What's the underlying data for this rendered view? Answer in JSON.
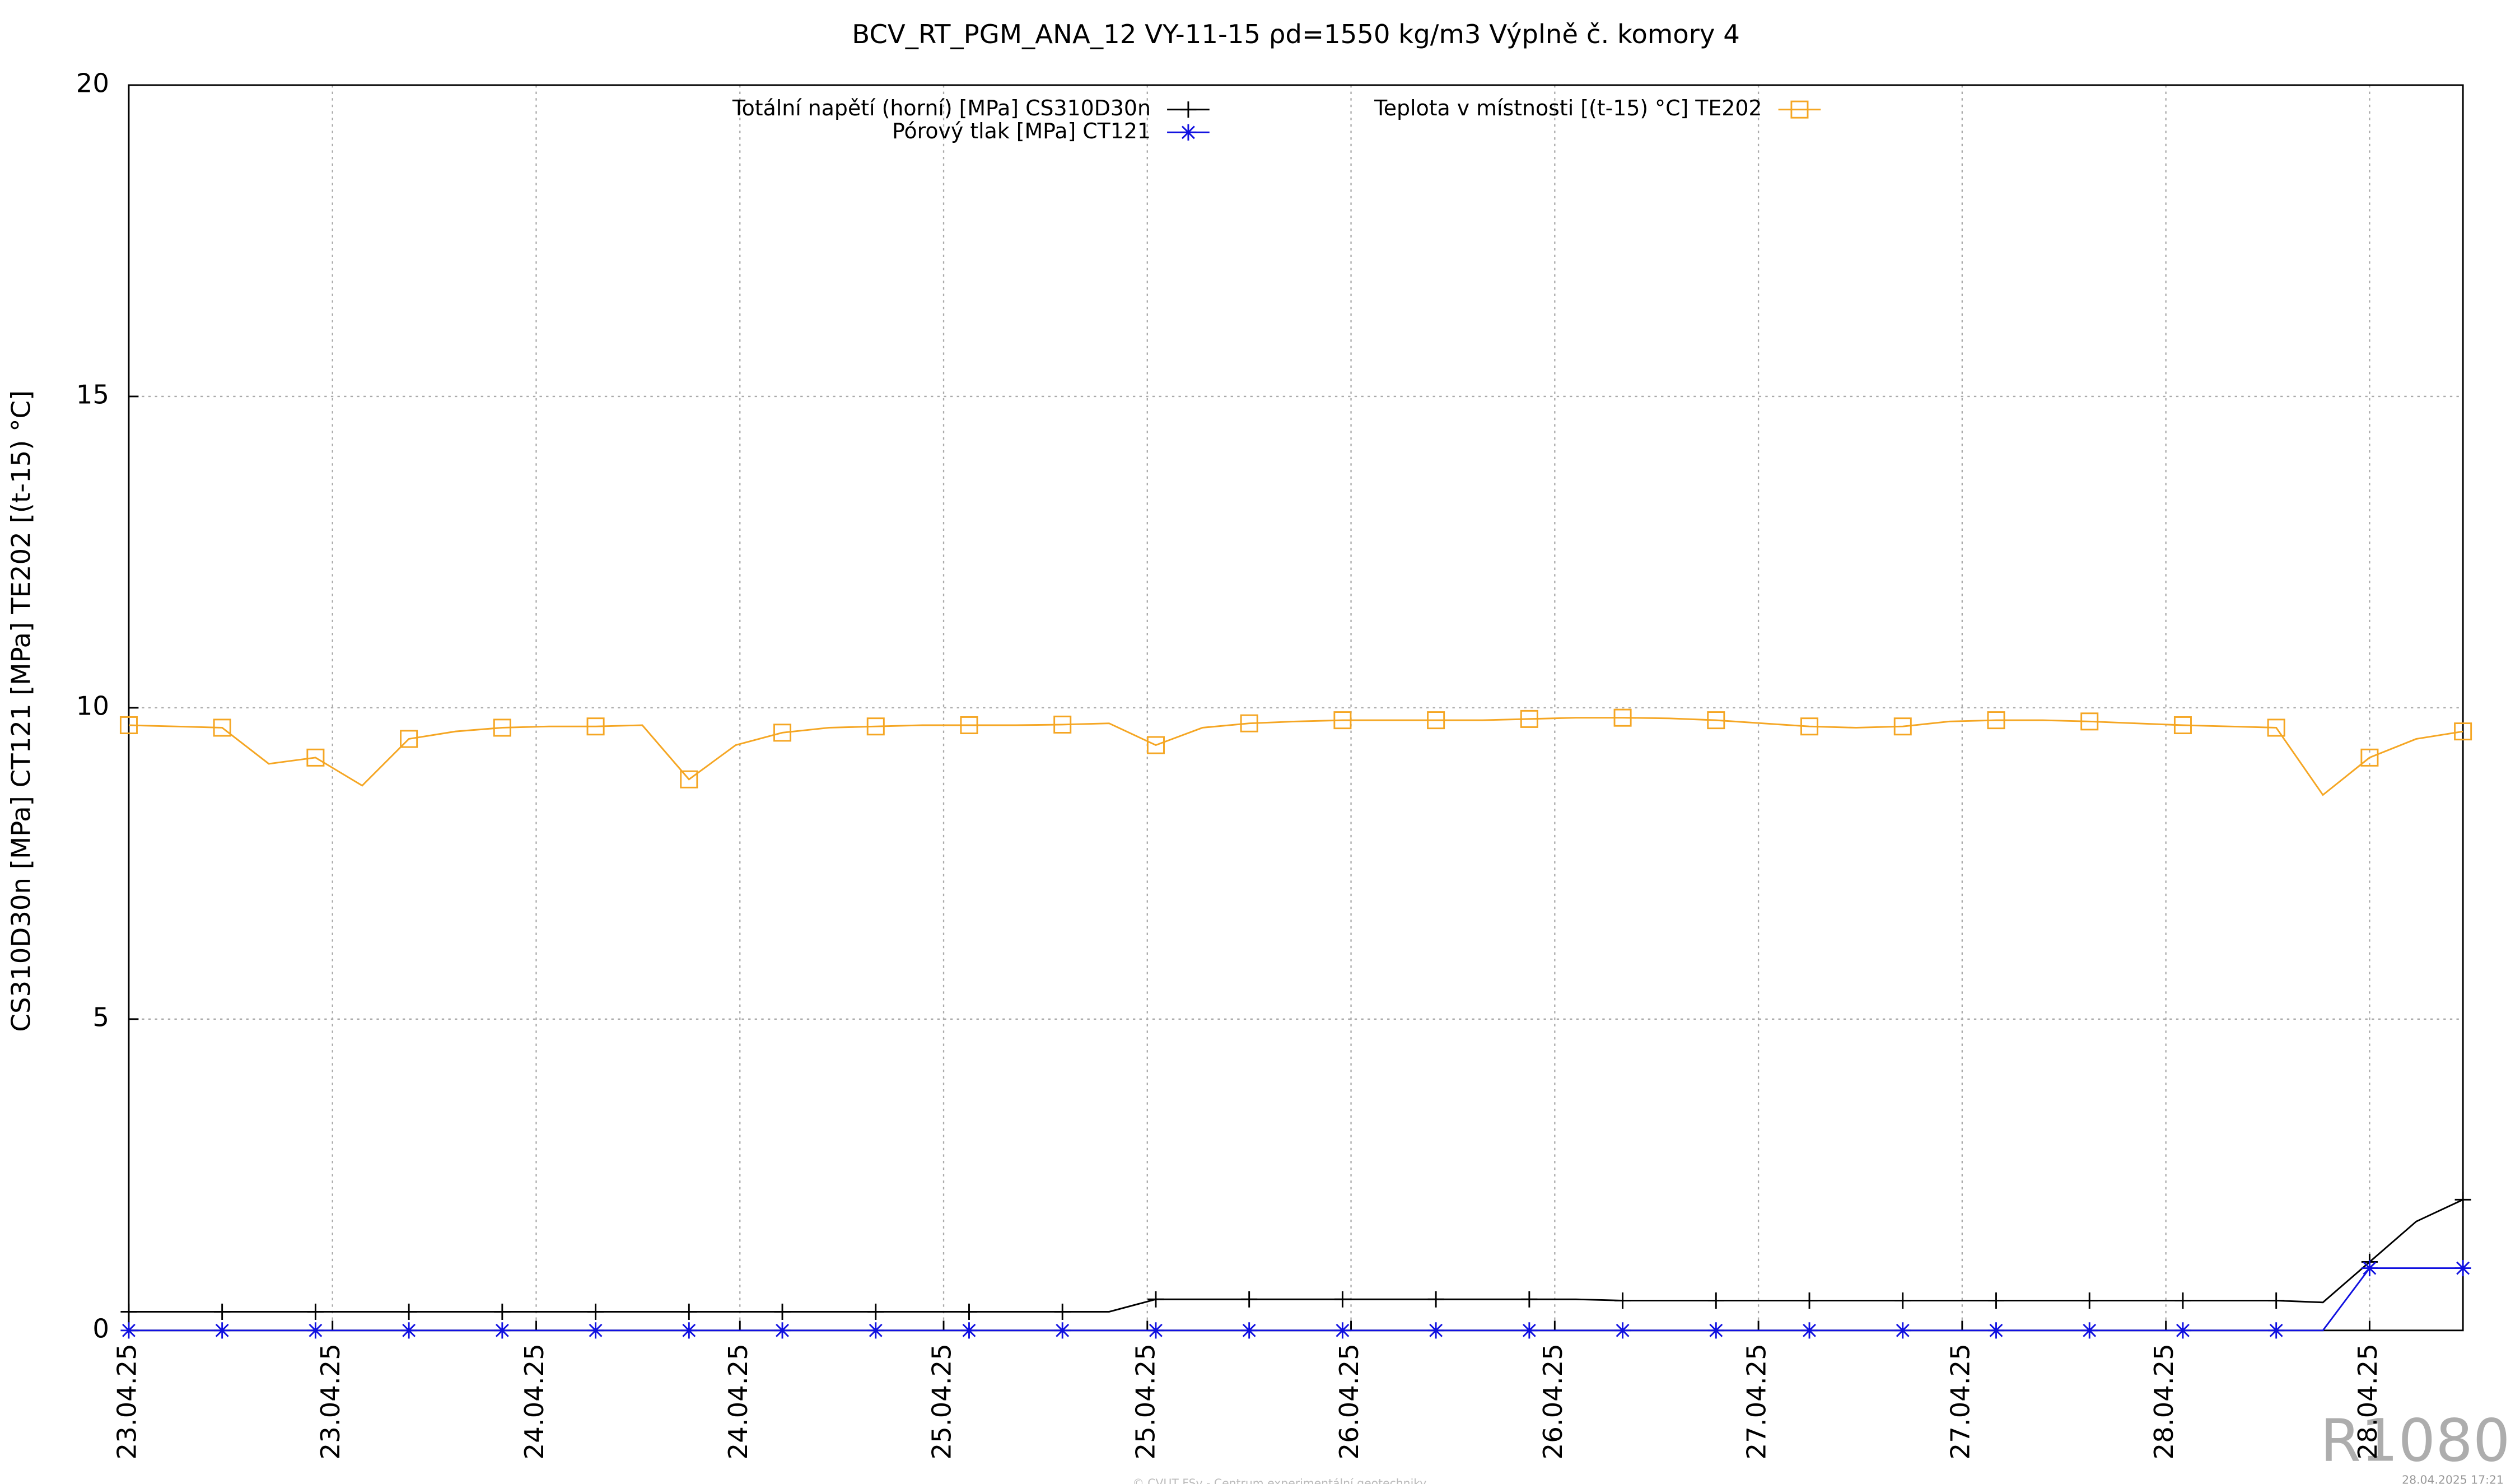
{
  "chart_data": {
    "type": "line",
    "title": "BCV_RT_PGM_ANA_12 VY-11-15 ρd=1550 kg/m3 Výplně č. komory 4",
    "y_label": "CS310D30n [MPa] CT121 [MPa] TE202 [(t-15) °C]",
    "x": [
      0,
      2.75,
      5.5,
      8.25,
      11,
      13.75,
      16.5,
      19.25,
      22,
      24.75,
      27.5,
      30.25,
      33,
      35.75,
      38.5,
      41.25,
      44,
      46.75,
      49.5,
      52.25,
      55,
      57.75,
      60.5,
      63.25,
      66,
      68.75,
      71.5,
      74.25,
      77,
      79.75,
      82.5,
      85.25,
      88,
      90.75,
      93.5,
      96.25,
      99,
      101.75,
      104.5,
      107.25,
      110,
      112.75,
      115.5,
      118.25,
      121,
      123.75,
      126.5,
      129.25,
      132,
      134.75,
      137.5
    ],
    "xlim": [
      0,
      137.5
    ],
    "xticks": [
      {
        "value": 0,
        "label": "23.04.25"
      },
      {
        "value": 12,
        "label": "23.04.25"
      },
      {
        "value": 24,
        "label": "24.04.25"
      },
      {
        "value": 36,
        "label": "24.04.25"
      },
      {
        "value": 48,
        "label": "25.04.25"
      },
      {
        "value": 60,
        "label": "25.04.25"
      },
      {
        "value": 72,
        "label": "26.04.25"
      },
      {
        "value": 84,
        "label": "26.04.25"
      },
      {
        "value": 96,
        "label": "27.04.25"
      },
      {
        "value": 108,
        "label": "27.04.25"
      },
      {
        "value": 120,
        "label": "28.04.25"
      },
      {
        "value": 132,
        "label": "28.04.25"
      }
    ],
    "ylim": [
      0,
      20
    ],
    "yticks": [
      0,
      5,
      10,
      15,
      20
    ],
    "grid": true,
    "series": [
      {
        "name": "Totální napětí (horní) [MPa] CS310D30n",
        "color": "#000000",
        "marker": "plus",
        "values": [
          0.3,
          0.3,
          0.3,
          0.3,
          0.3,
          0.3,
          0.3,
          0.3,
          0.3,
          0.3,
          0.3,
          0.3,
          0.3,
          0.3,
          0.3,
          0.3,
          0.3,
          0.3,
          0.3,
          0.3,
          0.3,
          0.3,
          0.5,
          0.5,
          0.5,
          0.5,
          0.5,
          0.5,
          0.5,
          0.5,
          0.5,
          0.5,
          0.48,
          0.48,
          0.48,
          0.48,
          0.48,
          0.48,
          0.48,
          0.48,
          0.48,
          0.48,
          0.48,
          0.48,
          0.48,
          0.48,
          0.48,
          0.45,
          1.1,
          1.75,
          2.1
        ]
      },
      {
        "name": "Pórový tlak [MPa] CT121",
        "color": "#1010e0",
        "marker": "star",
        "values": [
          0,
          0,
          0,
          0,
          0,
          0,
          0,
          0,
          0,
          0,
          0,
          0,
          0,
          0,
          0,
          0,
          0,
          0,
          0,
          0,
          0,
          0,
          0,
          0,
          0,
          0,
          0,
          0,
          0,
          0,
          0,
          0,
          0,
          0,
          0,
          0,
          0,
          0,
          0,
          0,
          0,
          0,
          0,
          0,
          0,
          0,
          0,
          0,
          1.0,
          1.0,
          1.0
        ]
      },
      {
        "name": "Teplota v místnosti [(t-15) °C] TE202",
        "color": "#f5a623",
        "marker": "square",
        "values": [
          9.72,
          9.7,
          9.68,
          9.1,
          9.2,
          8.75,
          9.5,
          9.62,
          9.68,
          9.7,
          9.7,
          9.72,
          8.85,
          9.4,
          9.6,
          9.68,
          9.7,
          9.72,
          9.72,
          9.72,
          9.73,
          9.75,
          9.4,
          9.68,
          9.75,
          9.78,
          9.8,
          9.8,
          9.8,
          9.8,
          9.82,
          9.84,
          9.84,
          9.83,
          9.8,
          9.75,
          9.7,
          9.68,
          9.7,
          9.78,
          9.8,
          9.8,
          9.78,
          9.75,
          9.72,
          9.7,
          9.68,
          8.6,
          9.2,
          9.5,
          9.62
        ]
      }
    ],
    "footnote": "© CVUT FSv - Centrum experimentální geotechniky",
    "timestamp": "28.04.2025 17:21",
    "watermark": "R1080"
  }
}
